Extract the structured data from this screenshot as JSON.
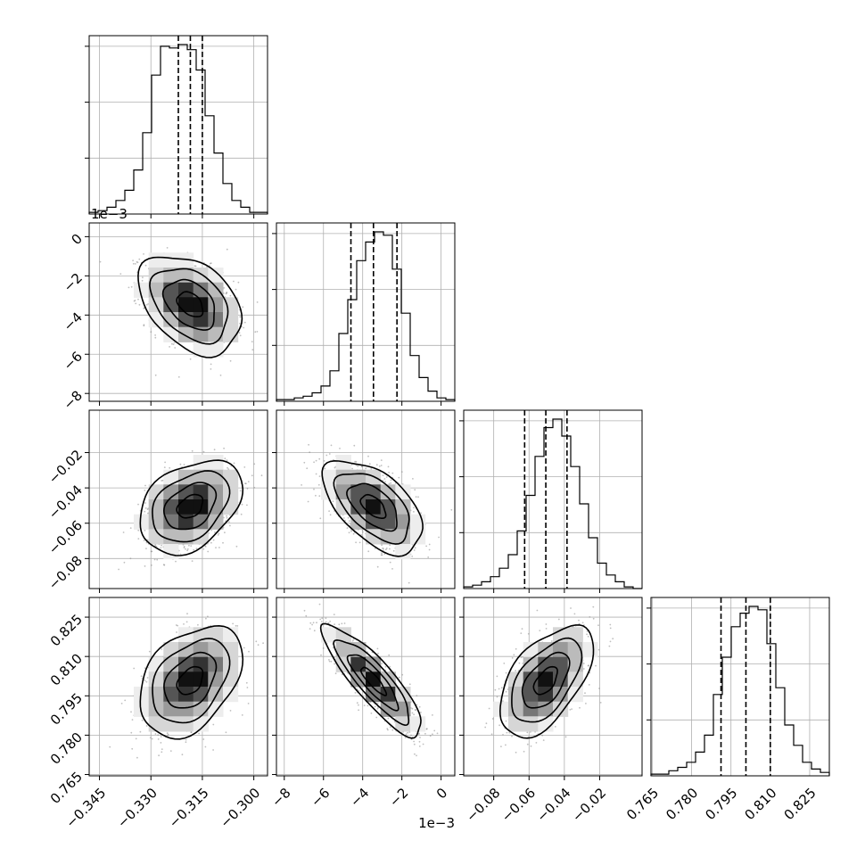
{
  "chart_data": {
    "type": "corner",
    "grid": true,
    "parameters": [
      {
        "range": [
          -0.348,
          -0.296
        ],
        "ticks": [
          -0.345,
          -0.33,
          -0.315,
          -0.3
        ],
        "tick_labels": [
          "−0.345",
          "−0.330",
          "−0.315",
          "−0.300"
        ],
        "quantiles": [
          -0.322,
          -0.3185,
          -0.315
        ],
        "offset_text": ""
      },
      {
        "range": [
          -8.4,
          0.7
        ],
        "ticks": [
          -8,
          -6,
          -4,
          -2,
          0
        ],
        "tick_labels": [
          "−8",
          "−6",
          "−4",
          "−2",
          "0"
        ],
        "quantiles": [
          -4.6,
          -3.45,
          -2.25
        ],
        "offset_text": "1e−3"
      },
      {
        "range": [
          -0.097,
          0.004
        ],
        "ticks": [
          -0.08,
          -0.06,
          -0.04,
          -0.02
        ],
        "tick_labels": [
          "−0.08",
          "−0.06",
          "−0.04",
          "−0.02"
        ],
        "quantiles": [
          -0.0625,
          -0.0505,
          -0.0385
        ],
        "offset_text": ""
      },
      {
        "range": [
          0.7645,
          0.8325
        ],
        "ticks": [
          0.765,
          0.78,
          0.795,
          0.81,
          0.825
        ],
        "tick_labels": [
          "0.765",
          "0.780",
          "0.795",
          "0.810",
          "0.825"
        ],
        "quantiles": [
          0.7912,
          0.8007,
          0.81
        ],
        "offset_text": ""
      }
    ],
    "histograms": [
      {
        "bin_edges_range": [
          -0.348,
          -0.296
        ],
        "counts": [
          1,
          2,
          4,
          8,
          14,
          26,
          48,
          82,
          99,
          98,
          100,
          97,
          85,
          58,
          36,
          18,
          8,
          4,
          1,
          1
        ]
      },
      {
        "bin_edges_range": [
          -8.4,
          0.7
        ],
        "counts": [
          1,
          1,
          2,
          3,
          5,
          9,
          18,
          40,
          60,
          83,
          94,
          100,
          98,
          78,
          52,
          27,
          14,
          6,
          2,
          1
        ]
      },
      {
        "bin_edges_range": [
          -0.097,
          0.004
        ],
        "counts": [
          1,
          2,
          4,
          7,
          12,
          20,
          34,
          55,
          78,
          95,
          100,
          90,
          72,
          50,
          30,
          15,
          8,
          4,
          1,
          0
        ]
      },
      {
        "bin_edges_range": [
          0.7645,
          0.8325
        ],
        "counts": [
          1,
          1,
          3,
          5,
          8,
          14,
          24,
          48,
          70,
          88,
          96,
          100,
          98,
          78,
          52,
          30,
          18,
          8,
          4,
          2
        ]
      }
    ],
    "pairs": [
      {
        "x": 0,
        "y": 1,
        "mean": [
          -0.3185,
          -3.45
        ],
        "sd": [
          0.0065,
          1.1
        ],
        "corr": -0.38
      },
      {
        "x": 0,
        "y": 2,
        "mean": [
          -0.3185,
          -0.0505
        ],
        "sd": [
          0.0065,
          0.0115
        ],
        "corr": 0.35
      },
      {
        "x": 1,
        "y": 2,
        "mean": [
          -3.45,
          -0.0505
        ],
        "sd": [
          1.1,
          0.0115
        ],
        "corr": -0.55
      },
      {
        "x": 0,
        "y": 3,
        "mean": [
          -0.3185,
          0.8007
        ],
        "sd": [
          0.0065,
          0.0092
        ],
        "corr": 0.38
      },
      {
        "x": 1,
        "y": 3,
        "mean": [
          -3.45,
          0.8007
        ],
        "sd": [
          1.1,
          0.0092
        ],
        "corr": -0.86
      },
      {
        "x": 2,
        "y": 3,
        "mean": [
          -0.0505,
          0.8007
        ],
        "sd": [
          0.0115,
          0.0092
        ],
        "corr": 0.55
      }
    ],
    "contour_levels_sigma": [
      0.5,
      1.0,
      1.5,
      2.0
    ]
  }
}
